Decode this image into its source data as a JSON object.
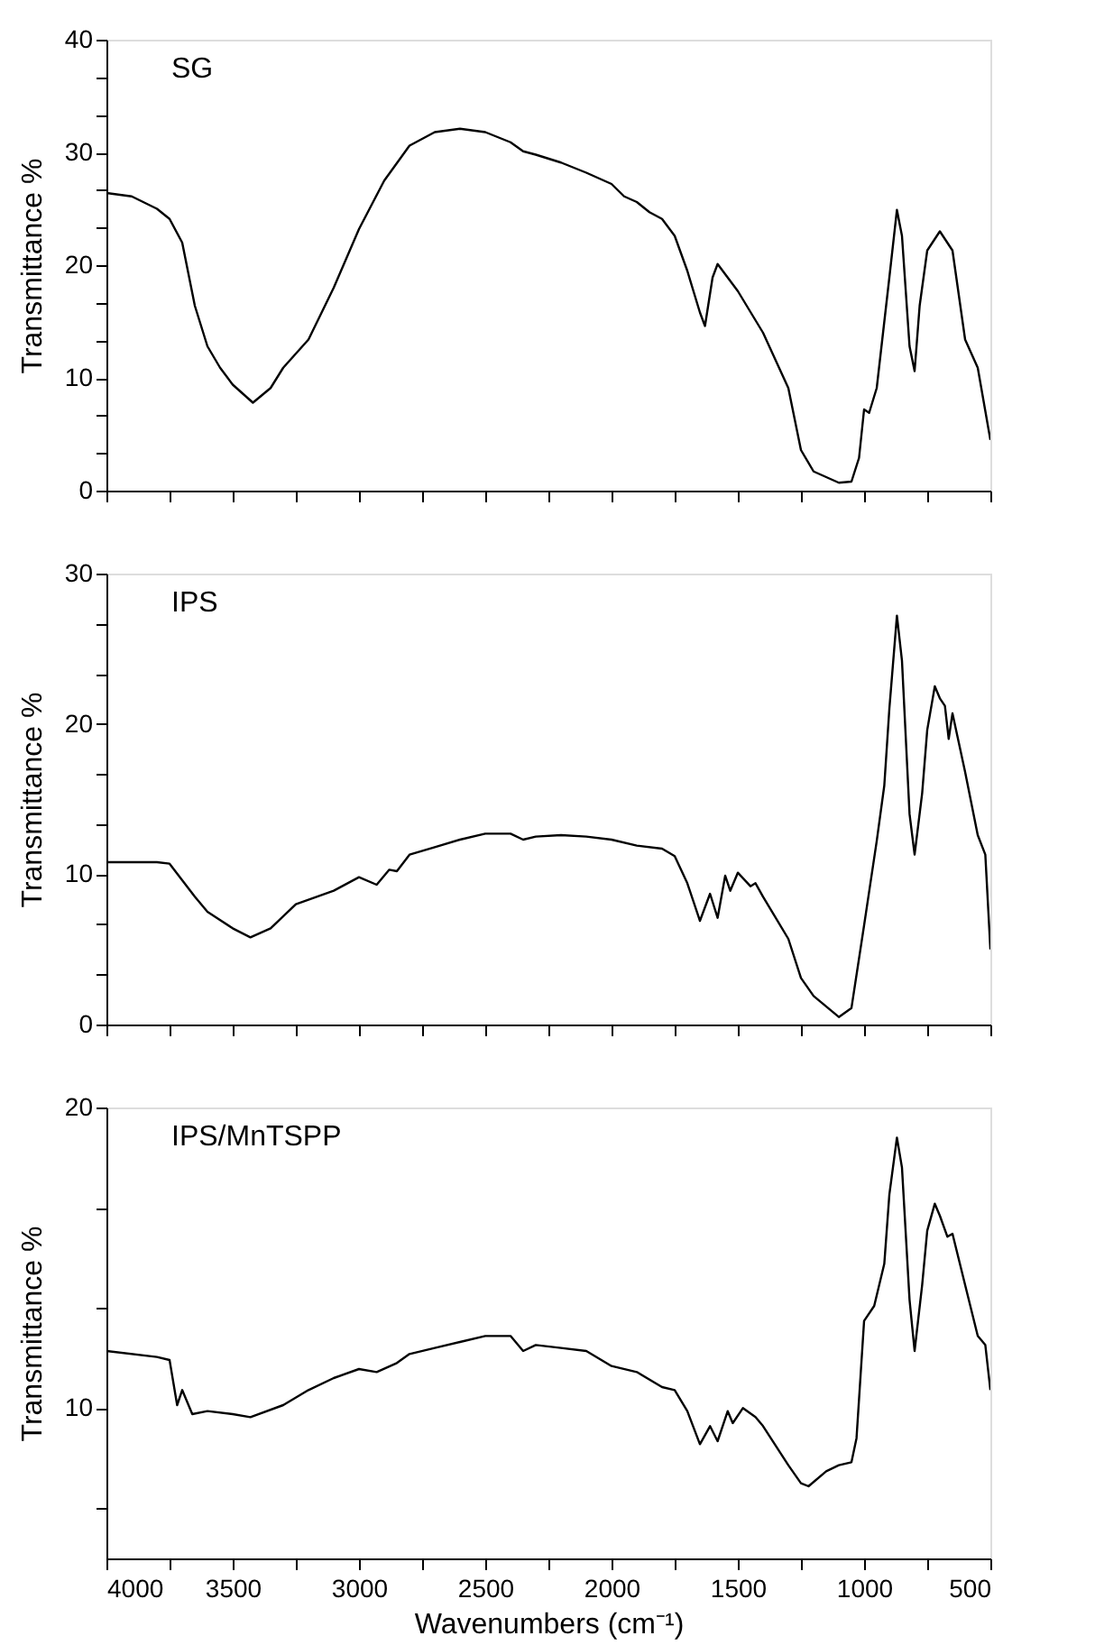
{
  "chart_data": [
    {
      "type": "line",
      "title": "SG",
      "ylabel": "Transmittance %",
      "tick_labels": "y",
      "grid": false,
      "xlim": [
        4000,
        500
      ],
      "ylim": [
        0,
        40
      ],
      "xticks": [
        4000,
        {
          "value": 3750,
          "label": null
        },
        3500,
        {
          "value": 3250,
          "label": null
        },
        3000,
        {
          "value": 2750,
          "label": null
        },
        2500,
        {
          "value": 2250,
          "label": null
        },
        2000,
        {
          "value": 1750,
          "label": null
        },
        1500,
        {
          "value": 1250,
          "label": null
        },
        1000,
        {
          "value": 750,
          "label": null
        },
        500
      ],
      "yticks": [
        0,
        {
          "value": 3.333,
          "label": null
        },
        {
          "value": 6.667,
          "label": null
        },
        10,
        {
          "value": 13.333,
          "label": null
        },
        {
          "value": 16.667,
          "label": null
        },
        20,
        {
          "value": 23.333,
          "label": null
        },
        {
          "value": 26.667,
          "label": null
        },
        30,
        {
          "value": 33.333,
          "label": null
        },
        {
          "value": 36.667,
          "label": null
        },
        40
      ],
      "x": [
        4000,
        3900,
        3800,
        3750,
        3700,
        3650,
        3600,
        3550,
        3500,
        3420,
        3350,
        3300,
        3200,
        3100,
        3000,
        2900,
        2800,
        2700,
        2600,
        2500,
        2400,
        2350,
        2300,
        2200,
        2100,
        2000,
        1950,
        1900,
        1850,
        1800,
        1750,
        1700,
        1650,
        1630,
        1600,
        1580,
        1550,
        1500,
        1400,
        1300,
        1250,
        1200,
        1150,
        1100,
        1050,
        1020,
        1000,
        980,
        950,
        900,
        870,
        850,
        820,
        800,
        780,
        750,
        700,
        650,
        600,
        550,
        500
      ],
      "series": [
        {
          "color": "#000000",
          "line_style": "solid",
          "values": [
            26.4,
            26.1,
            25.0,
            24.1,
            22.0,
            16.4,
            12.8,
            10.9,
            9.4,
            7.8,
            9.1,
            10.9,
            13.4,
            18.0,
            23.2,
            27.5,
            30.6,
            31.8,
            32.1,
            31.8,
            30.9,
            30.1,
            29.8,
            29.1,
            28.2,
            27.2,
            26.1,
            25.6,
            24.7,
            24.1,
            22.6,
            19.5,
            15.8,
            14.6,
            18.9,
            20.1,
            19.2,
            17.7,
            14.0,
            9.1,
            3.6,
            1.7,
            1.2,
            0.7,
            0.8,
            2.9,
            7.2,
            6.9,
            9.1,
            18.9,
            24.9,
            22.6,
            12.8,
            10.6,
            16.4,
            21.3,
            23.0,
            21.3,
            13.4,
            10.9,
            4.5
          ]
        }
      ]
    },
    {
      "type": "line",
      "title": "IPS",
      "ylabel": "Transmittance %",
      "tick_labels": "y",
      "grid": false,
      "xlim": [
        4000,
        500
      ],
      "ylim": [
        0,
        30
      ],
      "xticks": [
        4000,
        {
          "value": 3750,
          "label": null
        },
        3500,
        {
          "value": 3250,
          "label": null
        },
        3000,
        {
          "value": 2750,
          "label": null
        },
        2500,
        {
          "value": 2250,
          "label": null
        },
        2000,
        {
          "value": 1750,
          "label": null
        },
        1500,
        {
          "value": 1250,
          "label": null
        },
        1000,
        {
          "value": 750,
          "label": null
        },
        500
      ],
      "yticks": [
        0,
        {
          "value": 3.333,
          "label": null
        },
        {
          "value": 6.667,
          "label": null
        },
        10,
        {
          "value": 13.333,
          "label": null
        },
        {
          "value": 16.667,
          "label": null
        },
        20,
        {
          "value": 23.333,
          "label": null
        },
        {
          "value": 26.667,
          "label": null
        },
        30
      ],
      "x": [
        4000,
        3800,
        3750,
        3700,
        3650,
        3600,
        3500,
        3430,
        3350,
        3250,
        3100,
        3000,
        2930,
        2880,
        2850,
        2800,
        2700,
        2600,
        2500,
        2400,
        2350,
        2300,
        2200,
        2100,
        2000,
        1900,
        1800,
        1750,
        1700,
        1650,
        1610,
        1580,
        1550,
        1530,
        1500,
        1450,
        1430,
        1400,
        1300,
        1250,
        1200,
        1100,
        1050,
        1000,
        950,
        920,
        900,
        870,
        850,
        820,
        800,
        770,
        750,
        720,
        700,
        680,
        665,
        650,
        600,
        550,
        520,
        500
      ],
      "series": [
        {
          "color": "#000000",
          "line_style": "solid",
          "values": [
            10.8,
            10.8,
            10.7,
            9.6,
            8.5,
            7.5,
            6.4,
            5.8,
            6.4,
            8.0,
            8.9,
            9.8,
            9.3,
            10.3,
            10.2,
            11.3,
            11.8,
            12.3,
            12.7,
            12.7,
            12.3,
            12.5,
            12.6,
            12.5,
            12.3,
            11.9,
            11.7,
            11.2,
            9.4,
            6.9,
            8.7,
            7.1,
            9.9,
            8.9,
            10.1,
            9.2,
            9.4,
            8.5,
            5.7,
            3.1,
            1.9,
            0.5,
            1.1,
            6.6,
            12.2,
            15.9,
            21.0,
            27.2,
            24.2,
            14.0,
            11.3,
            15.4,
            19.6,
            22.5,
            21.7,
            21.2,
            19.0,
            20.7,
            16.8,
            12.6,
            11.3,
            5.0
          ]
        }
      ]
    },
    {
      "type": "line",
      "title": "IPS/MnTSPP",
      "ylabel": "Transmittance %",
      "xlabel": "Wavenumbers (cm⁻¹)",
      "grid": false,
      "xlim": [
        4000,
        500
      ],
      "ylim": [
        5,
        20
      ],
      "xticks": [
        4000,
        {
          "value": 3750,
          "label": null
        },
        3500,
        {
          "value": 3250,
          "label": null
        },
        3000,
        {
          "value": 2750,
          "label": null
        },
        2500,
        {
          "value": 2250,
          "label": null
        },
        2000,
        {
          "value": 1750,
          "label": null
        },
        1500,
        {
          "value": 1250,
          "label": null
        },
        1000,
        {
          "value": 750,
          "label": null
        },
        500
      ],
      "yticks": [
        {
          "value": 6.667,
          "label": null
        },
        10,
        {
          "value": 13.333,
          "label": null
        },
        {
          "value": 16.667,
          "label": null
        },
        20
      ],
      "x": [
        4000,
        3800,
        3750,
        3720,
        3700,
        3660,
        3600,
        3500,
        3430,
        3300,
        3200,
        3100,
        3000,
        2930,
        2850,
        2800,
        2700,
        2600,
        2500,
        2400,
        2350,
        2300,
        2200,
        2100,
        2000,
        1900,
        1800,
        1750,
        1700,
        1650,
        1610,
        1580,
        1540,
        1520,
        1480,
        1430,
        1400,
        1300,
        1250,
        1220,
        1150,
        1100,
        1050,
        1030,
        1000,
        960,
        920,
        900,
        870,
        850,
        820,
        800,
        770,
        750,
        720,
        700,
        670,
        650,
        600,
        550,
        520,
        500
      ],
      "series": [
        {
          "color": "#000000",
          "line_style": "solid",
          "values": [
            11.9,
            11.7,
            11.6,
            10.1,
            10.6,
            9.8,
            9.9,
            9.8,
            9.7,
            10.1,
            10.6,
            11.0,
            11.3,
            11.2,
            11.5,
            11.8,
            12.0,
            12.2,
            12.4,
            12.4,
            11.9,
            12.1,
            12.0,
            11.9,
            11.4,
            11.2,
            10.7,
            10.6,
            9.9,
            8.8,
            9.4,
            8.9,
            9.9,
            9.5,
            10.0,
            9.7,
            9.4,
            8.1,
            7.5,
            7.4,
            7.9,
            8.1,
            8.2,
            9.0,
            12.9,
            13.4,
            14.8,
            17.1,
            19.0,
            18.0,
            13.6,
            11.9,
            14.1,
            15.9,
            16.8,
            16.4,
            15.7,
            15.8,
            14.1,
            12.4,
            12.1,
            10.6
          ]
        }
      ]
    }
  ]
}
